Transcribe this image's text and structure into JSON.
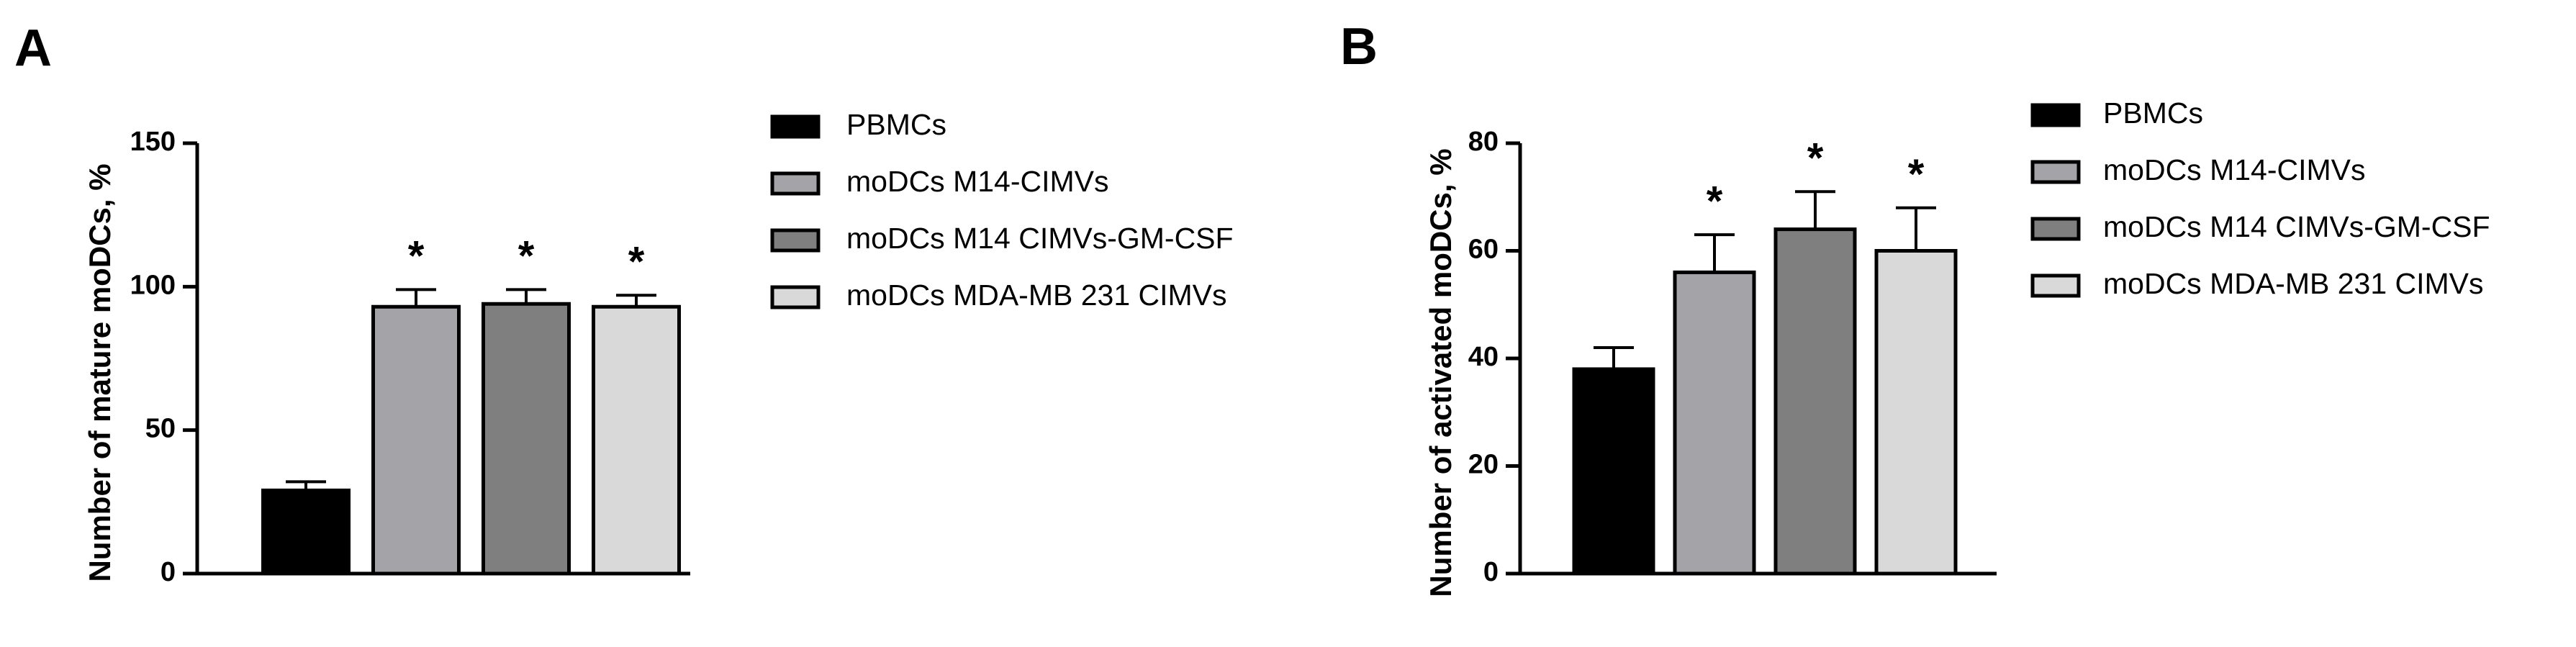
{
  "chart_data": [
    {
      "type": "bar",
      "panel_label": "A",
      "ylabel": "Number of mature moDCs, %",
      "categories": [
        "PBMCs",
        "moDCs M14-CIMVs",
        "moDCs M14 CIMVs-GM-CSF",
        "moDCs MDA-MB 231 CIMVs"
      ],
      "colors": [
        "#000000",
        "#a3a3a8",
        "#7f7f7f",
        "#d9d9d9"
      ],
      "values": [
        29,
        93,
        94,
        93
      ],
      "errors": [
        3,
        6,
        5,
        4
      ],
      "significance": [
        null,
        "*",
        "*",
        "*"
      ],
      "ylim": [
        0,
        150
      ],
      "yticks": [
        0,
        50,
        100,
        150
      ]
    },
    {
      "type": "bar",
      "panel_label": "B",
      "ylabel": "Number of activated moDCs, %",
      "categories": [
        "PBMCs",
        "moDCs M14-CIMVs",
        "moDCs M14 CIMVs-GM-CSF",
        "moDCs MDA-MB 231 CIMVs"
      ],
      "colors": [
        "#000000",
        "#a3a3a8",
        "#7f7f7f",
        "#d9d9d9"
      ],
      "values": [
        38,
        56,
        64,
        60
      ],
      "errors": [
        4,
        7,
        7,
        8
      ],
      "significance": [
        null,
        "*",
        "*",
        "*"
      ],
      "ylim": [
        0,
        80
      ],
      "yticks": [
        0,
        20,
        40,
        60,
        80
      ]
    }
  ]
}
